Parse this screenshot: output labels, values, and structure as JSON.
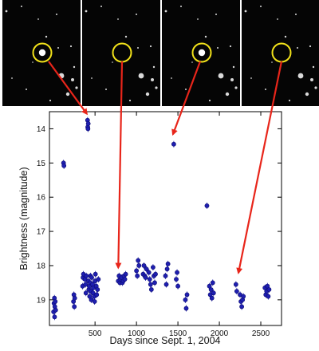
{
  "colors": {
    "marker": "#1f1fb0",
    "marker_edge": "#0a0a70",
    "arrow": "#e8251a",
    "circle": "#f2e21a",
    "panel_bg": "#050505",
    "star": "#ffffff"
  },
  "image_strip": {
    "panels": [
      {
        "label": "",
        "target_visible": true
      },
      {
        "label": "",
        "target_visible": false
      },
      {
        "label": "",
        "target_visible": true
      },
      {
        "label": "",
        "target_visible": false
      }
    ]
  },
  "chart_data": {
    "type": "scatter",
    "title": "",
    "xlabel": "Days since Sept. 1, 2004",
    "ylabel": "Brightness (magnitude)",
    "xlim": [
      -50,
      2750
    ],
    "ylim": [
      19.75,
      13.5
    ],
    "y_inverted": true,
    "xticks": [
      500,
      1000,
      1500,
      2000,
      2500
    ],
    "xtick_labels": [
      "500",
      "1000",
      "1500",
      "2000",
      "2500"
    ],
    "yticks": [
      14,
      15,
      16,
      17,
      18,
      19
    ],
    "ytick_labels": [
      "14",
      "15",
      "16",
      "17",
      "18",
      "19"
    ],
    "grid": false,
    "legend": "none",
    "series": [
      {
        "points": [
          [
            0,
            19.35
          ],
          [
            5,
            19.1
          ],
          [
            10,
            18.95
          ],
          [
            12,
            19.5
          ],
          [
            15,
            19.2
          ],
          [
            20,
            19.05
          ],
          [
            25,
            19.3
          ],
          [
            120,
            15.0
          ],
          [
            125,
            15.08
          ],
          [
            240,
            19.05
          ],
          [
            245,
            18.85
          ],
          [
            250,
            19.2
          ],
          [
            255,
            18.95
          ],
          [
            350,
            18.6
          ],
          [
            355,
            18.35
          ],
          [
            360,
            18.25
          ],
          [
            380,
            18.4
          ],
          [
            385,
            18.55
          ],
          [
            390,
            18.8
          ],
          [
            395,
            18.3
          ],
          [
            410,
            13.75
          ],
          [
            412,
            13.95
          ],
          [
            415,
            14.0
          ],
          [
            418,
            13.85
          ],
          [
            420,
            18.45
          ],
          [
            425,
            18.7
          ],
          [
            430,
            18.6
          ],
          [
            435,
            18.9
          ],
          [
            440,
            18.5
          ],
          [
            445,
            18.3
          ],
          [
            450,
            18.75
          ],
          [
            455,
            19.0
          ],
          [
            460,
            18.35
          ],
          [
            470,
            18.55
          ],
          [
            475,
            18.8
          ],
          [
            480,
            18.65
          ],
          [
            490,
            18.9
          ],
          [
            495,
            19.05
          ],
          [
            500,
            18.45
          ],
          [
            505,
            18.25
          ],
          [
            515,
            18.6
          ],
          [
            520,
            18.85
          ],
          [
            530,
            18.7
          ],
          [
            540,
            18.4
          ],
          [
            780,
            18.45
          ],
          [
            790,
            18.3
          ],
          [
            800,
            18.5
          ],
          [
            810,
            18.4
          ],
          [
            820,
            18.35
          ],
          [
            830,
            18.5
          ],
          [
            840,
            18.45
          ],
          [
            850,
            18.3
          ],
          [
            860,
            18.4
          ],
          [
            870,
            18.25
          ],
          [
            1000,
            18.15
          ],
          [
            1010,
            18.3
          ],
          [
            1020,
            17.85
          ],
          [
            1030,
            18.0
          ],
          [
            1080,
            18.25
          ],
          [
            1090,
            18.0
          ],
          [
            1100,
            18.3
          ],
          [
            1110,
            18.35
          ],
          [
            1120,
            18.1
          ],
          [
            1150,
            18.2
          ],
          [
            1160,
            18.4
          ],
          [
            1170,
            18.55
          ],
          [
            1180,
            18.7
          ],
          [
            1200,
            18.05
          ],
          [
            1210,
            18.3
          ],
          [
            1220,
            18.5
          ],
          [
            1230,
            18.25
          ],
          [
            1350,
            18.3
          ],
          [
            1360,
            18.55
          ],
          [
            1370,
            18.1
          ],
          [
            1380,
            17.95
          ],
          [
            1450,
            14.45
          ],
          [
            1480,
            18.4
          ],
          [
            1490,
            18.2
          ],
          [
            1500,
            18.6
          ],
          [
            1590,
            19.0
          ],
          [
            1600,
            19.25
          ],
          [
            1610,
            18.85
          ],
          [
            1850,
            16.25
          ],
          [
            1880,
            18.6
          ],
          [
            1890,
            18.85
          ],
          [
            1900,
            18.7
          ],
          [
            1910,
            18.95
          ],
          [
            1920,
            18.5
          ],
          [
            1930,
            18.8
          ],
          [
            2200,
            18.55
          ],
          [
            2210,
            18.75
          ],
          [
            2250,
            18.85
          ],
          [
            2260,
            19.05
          ],
          [
            2270,
            19.2
          ],
          [
            2280,
            19.0
          ],
          [
            2290,
            18.9
          ],
          [
            2550,
            18.65
          ],
          [
            2560,
            18.85
          ],
          [
            2570,
            18.75
          ],
          [
            2580,
            18.6
          ],
          [
            2590,
            18.9
          ],
          [
            2600,
            18.7
          ]
        ]
      }
    ]
  }
}
